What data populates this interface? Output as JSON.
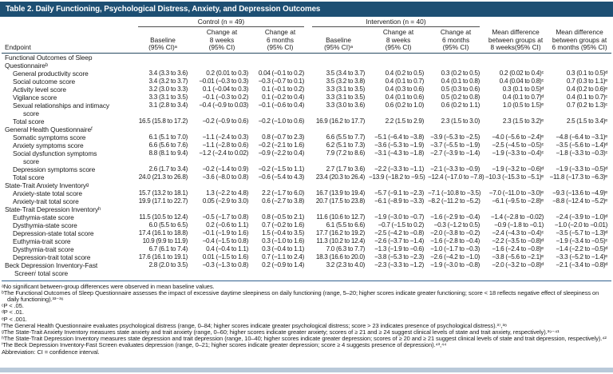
{
  "title": "Table 2. Daily Functioning, Psychological Distress, Anxiety, and Depression Outcomes",
  "groups": {
    "control": "Control (n = 49)",
    "intervention": "Intervention (n = 40)"
  },
  "columns": [
    "Endpoint",
    "Baseline\n(95% CI)ᵃ",
    "Change at\n8 weeks\n(95% CI)",
    "Change at\n6 months\n(95% CI)",
    "Baseline\n(95% CI)ᵃ",
    "Change at\n8 weeks\n(95% CI)",
    "Change at\n6 months\n(95% CI)",
    "Mean difference\nbetween groups at\n8 weeks(95% CI)",
    "Mean difference\nbetween groups at\n6 months (95% CI)"
  ],
  "sections": [
    {
      "header": "Functional Outcomes of Sleep\nQuestionnaireᵇ",
      "rows": [
        {
          "label": "General productivity score",
          "indent": 1,
          "values": [
            "3.4 (3.3 to 3.6)",
            "0.2 (0.01 to 0.3)",
            "0.04 (−0.1 to 0.2)",
            "3.5 (3.4 to 3.7)",
            "0.4 (0.2 to 0.5)",
            "0.3 (0.2 to 0.5)",
            "0.2 (0.02 to 0.4)ᶜ",
            "0.3 (0.1 to 0.5)ᵈ"
          ]
        },
        {
          "label": "Social outcome score",
          "indent": 1,
          "values": [
            "3.4 (3.2 to 3.7)",
            "−0.01 (−0.3 to 0.3)",
            "−0.3 (−0.7 to 0.1)",
            "3.5 (3.2 to 3.8)",
            "0.4 (0.1 to 0.7)",
            "0.4 (0.1 to 0.8)",
            "0.4 (0.04 to 0.8)ᶜ",
            "0.7 (0.3 to 1.1)ᵉ"
          ]
        },
        {
          "label": "Activity level score",
          "indent": 1,
          "values": [
            "3.2 (3.0 to 3.3)",
            "0.1 (−0.04 to 0.3)",
            "0.1 (−0.1 to 0.2)",
            "3.3 (3.1 to 3.5)",
            "0.4 (0.3 to 0.6)",
            "0.5 (0.3 to 0.6)",
            "0.3 (0.1 to 0.5)ᵈ",
            "0.4 (0.2 to 0.6)ᵉ"
          ]
        },
        {
          "label": "Vigilance score",
          "indent": 1,
          "values": [
            "3.3 (3.1 to 3.5)",
            "−0.1 (−0.3 to 0.2)",
            "0.1 (−0.2 to 0.4)",
            "3.3 (3.1 to 3.5)",
            "0.4 (0.1 to 0.6)",
            "0.5 (0.2 to 0.8)",
            "0.4 (0.1 to 0.7)ᵈ",
            "0.4 (0.1 to 0.7)ᶜ"
          ]
        },
        {
          "label": "Sexual relationships and intimacy\nscore",
          "indent": 1,
          "values": [
            "3.1 (2.8 to 3.4)",
            "−0.4 (−0.9 to 0.03)",
            "−0.1 (−0.6 to 0.4)",
            "3.3 (3.0 to 3.6)",
            "0.6 (0.2 to 1.0)",
            "0.6 (0.2 to 1.1)",
            "1.0 (0.5 to 1.5)ᵉ",
            "0.7 (0.2 to 1.3)ᶜ"
          ]
        },
        {
          "label": "Total score",
          "indent": 1,
          "values": [
            "16.5 (15.8 to 17.2)",
            "−0.2 (−0.9 to 0.6)",
            "−0.2 (−1.0 to 0.6)",
            "16.9 (16.2 to 17.7)",
            "2.2 (1.5 to 2.9)",
            "2.3 (1.5 to 3.0)",
            "2.3 (1.5 to 3.2)ᵉ",
            "2.5 (1.5 to 3.4)ᵉ"
          ]
        }
      ]
    },
    {
      "header": "General Health Questionnaireᶠ",
      "rows": [
        {
          "label": "Somatic symptoms score",
          "indent": 1,
          "values": [
            "6.1 (5.1 to 7.0)",
            "−1.1 (−2.4 to 0.3)",
            "0.8 (−0.7 to 2.3)",
            "6.6 (5.5 to 7.7)",
            "−5.1 (−6.4 to −3.8)",
            "−3.9 (−5.3 to −2.5)",
            "−4.0 (−5.6 to −2.4)ᵉ",
            "−4.8 (−6.4 to −3.1)ᵉ"
          ]
        },
        {
          "label": "Anxiety symptoms score",
          "indent": 1,
          "values": [
            "6.6 (5.6 to 7.6)",
            "−1.1 (−2.8 to 0.6)",
            "−0.2 (−2.1 to 1.6)",
            "6.2 (5.1 to 7.3)",
            "−3.6 (−5.3 to −1.9)",
            "−3.7 (−5.5 to −1.9)",
            "−2.5 (−4.5 to −0.5)ᶜ",
            "−3.5 (−5.6 to −1.4)ᵈ"
          ]
        },
        {
          "label": "Social dysfunction symptoms\nscore",
          "indent": 1,
          "values": [
            "8.8 (8.1 to 9.4)",
            "−1.2 (−2.4 to 0.02)",
            "−0.9 (−2.2 to 0.4)",
            "7.9 (7.2 to 8.6)",
            "−3.1 (−4.3 to −1.8)",
            "−2.7 (−3.9 to −1.4)",
            "−1.9 (−3.3 to −0.4)ᶜ",
            "−1.8 (−3.3 to −0.3)ᶜ"
          ]
        },
        {
          "label": "Depression symptoms score",
          "indent": 1,
          "values": [
            "2.6 (1.7 to 3.4)",
            "−0.2 (−1.4 to 0.9)",
            "−0.2 (−1.5 to 1.1)",
            "2.7 (1.7 to 3.6)",
            "−2.2 (−3.3 to −1.1)",
            "−2.1 (−3.3 to −0.9)",
            "−1.9 (−3.2 to −0.6)ᵈ",
            "−1.9 (−3.3 to −0.5)ᵈ"
          ]
        },
        {
          "label": "Total score",
          "indent": 1,
          "values": [
            "24.0 (21.3 to 26.8)",
            "−3.6 (−8.0 to 0.8)",
            "−0.6 (−5.4 to 4.3)",
            "23.4 (20.3 to 26.4)",
            "−13.9 (−18.2 to −9.5)",
            "−12.4 (−17.0 to −7.8)",
            "−10.3 (−15.3 to −5.1)ᵉ",
            "−11.8 (−17.3 to −6.3)ᵉ"
          ]
        }
      ]
    },
    {
      "header": "State-Trait Anxiety Inventoryᵍ",
      "rows": [
        {
          "label": "Anxiety-state total score",
          "indent": 1,
          "values": [
            "15.7 (13.2 to 18.1)",
            "1.3 (−2.2 to 4.8)",
            "2.2 (−1.7 to 6.0)",
            "16.7 (13.9 to 19.4)",
            "−5.7 (−9.1 to −2.3)",
            "−7.1 (−10.8 to −3.5)",
            "−7.0 (−11.0 to −3.0)ᵉ",
            "−9.3 (−13.6 to −4.9)ᵉ"
          ]
        },
        {
          "label": "Anxiety-trait total score",
          "indent": 1,
          "values": [
            "19.9 (17.1 to 22.7)",
            "0.05 (−2.9 to 3.0)",
            "0.6 (−2.7 to 3.8)",
            "20.7 (17.5 to 23.8)",
            "−6.1 (−8.9 to −3.3)",
            "−8.2 (−11.2 to −5.2)",
            "−6.1 (−9.5 to −2.8)ᵉ",
            "−8.8 (−12.4 to −5.2)ᵉ"
          ]
        }
      ]
    },
    {
      "header": "State-Trait Depression Inventoryʰ",
      "rows": [
        {
          "label": "Euthymia-state score",
          "indent": 1,
          "values": [
            "11.5 (10.5 to 12.4)",
            "−0.5 (−1.7 to 0.8)",
            "0.8 (−0.5 to 2.1)",
            "11.6 (10.6 to 12.7)",
            "−1.9 (−3.0 to −0.7)",
            "−1.6 (−2.9 to −0.4)",
            "−1.4 (−2.8 to −0.02)",
            "−2.4 (−3.9 to −1.0)ᵈ"
          ]
        },
        {
          "label": "Dysthymia-state score",
          "indent": 1,
          "values": [
            "6.0 (5.5 to 6.5)",
            "0.2 (−0.6 to 1.1)",
            "0.7 (−0.2 to 1.6)",
            "6.1 (5.5 to 6.6)",
            "−0.7 (−1.5 to 0.2)",
            "−0.3 (−1.2 to 0.5)",
            "−0.9 (−1.8 to −0.1)",
            "−1.0 (−2.0 to −0.01)"
          ]
        },
        {
          "label": "Depression-state total score",
          "indent": 1,
          "values": [
            "17.4 (16.1 to 18.8)",
            "−0.1 (−1.9 to 1.6)",
            "1.5 (−0.4 to 3.5)",
            "17.7 (16.2 to 19.2)",
            "−2.5 (−4.2 to −0.8)",
            "−2.0 (−3.8 to −0.2)",
            "−2.4 (−4.3 to −0.4)ᶜ",
            "−3.5 (−5.7 to −1.3)ᵈ"
          ]
        },
        {
          "label": "Euthymia-trait score",
          "indent": 1,
          "values": [
            "10.9 (9.9 to 11.9)",
            "−0.4 (−1.5 to 0.8)",
            "0.3 (−1.0 to 1.6)",
            "11.3 (10.2 to 12.4)",
            "−2.6 (−3.7 to −1.4)",
            "−1.6 (−2.8 to −0.4)",
            "−2.2 (−3.5 to −0.8)ᵈ",
            "−1.9 (−3.4 to −0.5)ᶜ"
          ]
        },
        {
          "label": "Dysthymia-trait score",
          "indent": 1,
          "values": [
            "6.7 (6.1 to 7.4)",
            "0.4 (−0.4 to 1.1)",
            "0.3 (−0.4 to 1.1)",
            "7.0 (6.3 to 7.7)",
            "−1.3 (−1.9 to −0.6)",
            "−1.0 (−1.7 to −0.3)",
            "−1.6 (−2.4 to −0.8)ᵉ",
            "−1.4 (−2.2 to −0.5)ᵈ"
          ]
        },
        {
          "label": "Depression-trait total score",
          "indent": 1,
          "values": [
            "17.6 (16.1 to 19.1)",
            "0.01 (−1.5 to 1.6)",
            "0.7 (−1.1 to 2.4)",
            "18.3 (16.6 to 20.0)",
            "−3.8 (−5.3 to −2.3)",
            "−2.6 (−4.2 to −1.0)",
            "−3.8 (−5.6 to −2.1)ᵉ",
            "−3.3 (−5.2 to −1.4)ᵉ"
          ]
        }
      ]
    },
    {
      "header": null,
      "rows": [
        {
          "label": "Beck Depression Inventory-Fast\nScreenⁱ total score",
          "indent": 0,
          "values": [
            "2.8 (2.0 to 3.5)",
            "−0.3 (−1.3 to 0.8)",
            "0.2 (−0.9 to 1.4)",
            "3.2 (2.3 to 4.0)",
            "−2.3 (−3.3 to −1.2)",
            "−1.9 (−3.0 to −0.8)",
            "−2.0 (−3.2 to −0.8)ᵈ",
            "−2.1 (−3.4 to −0.8)ᵈ"
          ]
        }
      ]
    }
  ],
  "footnotes": [
    "ᵃNo significant between-group differences were observed in mean baseline values.",
    "ᵇThe Functional Outcomes of Sleep Questionnaire assesses the impact of excessive daytime sleepiness on daily functioning (range, 5–20; higher scores indicate greater functioning; score < 18 reflects negative effect of sleepiness on daily functioning).³³⁻³⁶",
    "ᶜP < .05.",
    "ᵈP < .01.",
    "ᵉP < .001.",
    "ᶠThe General Health Questionnaire evaluates psychological distress (range, 0–84; higher scores indicate greater psychological distress; score > 23 indicates presence of psychological distress).³⁷,³⁸",
    "ᵍThe State-Trait Anxiety Inventory measures state anxiety and trait anxiety (range, 0–60; higher scores indicate greater anxiety; scores of ≥ 21 and ≥ 24 suggest clinical levels of state and trait anxiety, respectively).³⁹⁻⁴¹",
    "ʰThe State-Trait Depression Inventory measures state depression and trait depression (range, 10–40; higher scores indicate greater depression; scores of ≥ 20 and ≥ 21 suggest clinical levels of state and trait depression, respectively).⁴²",
    "ⁱThe Beck Depression Inventory-Fast Screen evaluates depression (range, 0–21; higher scores indicate greater depression; score ≥ 4 suggests presence of depression).⁴³,⁴⁴",
    "Abbreviation: CI = confidence interval."
  ],
  "colors": {
    "title_bar": "#1d4f73",
    "header_rule": "#274a63",
    "footnote_rule": "#31618e",
    "bottom_bar": "#b9c9d9"
  }
}
